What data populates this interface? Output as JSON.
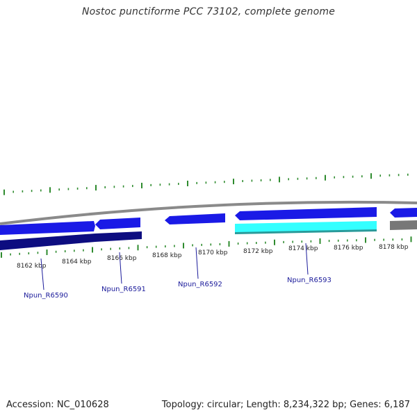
{
  "title": "Nostoc punctiforme PCC 73102, complete genome",
  "footer": {
    "accession": "Accession: NC_010628",
    "summary": "Topology: circular; Length: 8,234,322 bp; Genes: 6,187"
  },
  "colors": {
    "backbone": "#8a8a8a",
    "gene_forward": "#1a1ae6",
    "gene_reverse": "#0d0d80",
    "rrna": "#33ffff",
    "other_feature": "#777777",
    "tick": "#2e8b2e",
    "label_line": "#1a1a9a",
    "gene_label": "#1a1a9a"
  },
  "axis": {
    "unit": "kbp",
    "tick_labels": [
      "8162 kbp",
      "8164 kbp",
      "8166 kbp",
      "8168 kbp",
      "8170 kbp",
      "8172 kbp",
      "8174 kbp",
      "8176 kbp",
      "8178 kbp"
    ]
  },
  "gene_labels": [
    "Npun_R6590",
    "Npun_R6591",
    "Npun_R6592",
    "Npun_R6593"
  ]
}
